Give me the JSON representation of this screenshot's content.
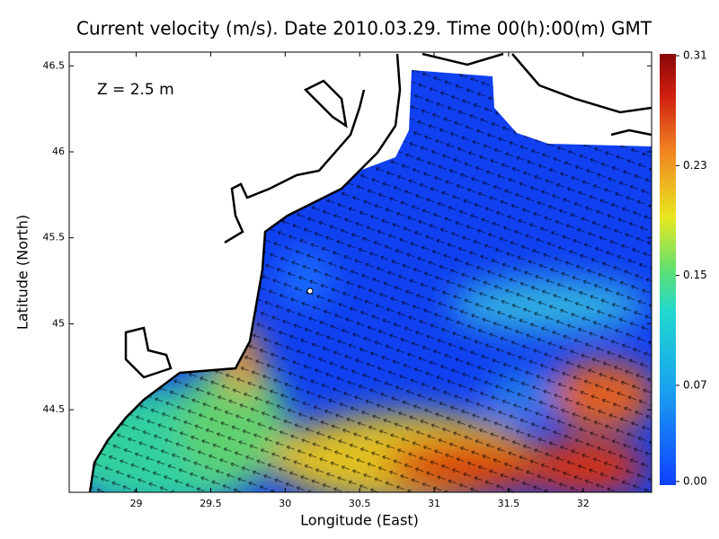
{
  "chart_data": {
    "type": "field",
    "title": "Current velocity (m/s). Date 2010.03.29. Time 00(h):00(m) GMT",
    "annotation": "Z = 2.5 m",
    "x_label": "Longitude (East)",
    "y_label": "Latitude (North)",
    "xlim": [
      28.55,
      32.46
    ],
    "xticks": [
      29,
      29.5,
      30,
      30.5,
      31,
      31.5,
      32
    ],
    "ylim": [
      44.02,
      46.58
    ],
    "yticks": [
      44.5,
      45,
      45.5,
      46,
      46.5
    ],
    "colorbar": {
      "lim": [
        0,
        0.31
      ],
      "ticks": [
        {
          "value": 0,
          "label": "0.00"
        },
        0.07,
        0.15,
        0.23,
        0.31
      ]
    }
  }
}
